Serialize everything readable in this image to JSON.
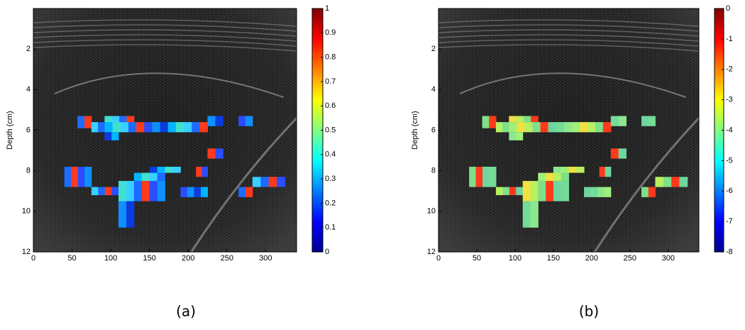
{
  "chart_data": [
    {
      "type": "heatmap",
      "caption": "(a)",
      "ylabel": "Depth (cm)",
      "xlim": [
        0,
        340
      ],
      "xticks": [
        0,
        50,
        100,
        150,
        200,
        250,
        300
      ],
      "ylim": [
        12,
        0
      ],
      "yticks": [
        2,
        4,
        6,
        8,
        10,
        12
      ],
      "colormap": "jet",
      "clim": [
        0,
        1
      ],
      "cticks": [
        0,
        0.1,
        0.2,
        0.3,
        0.4,
        0.5,
        0.6,
        0.7,
        0.8,
        0.9,
        1
      ]
    },
    {
      "type": "heatmap",
      "caption": "(b)",
      "ylabel": "Depth (cm)",
      "xlim": [
        0,
        340
      ],
      "xticks": [
        0,
        50,
        100,
        150,
        200,
        250,
        300
      ],
      "ylim": [
        12,
        0
      ],
      "yticks": [
        2,
        4,
        6,
        8,
        10,
        12
      ],
      "colormap": "jet",
      "clim": [
        -8,
        0
      ],
      "cticks": [
        -8,
        -7,
        -6,
        -5,
        -4,
        -3,
        -2,
        -1,
        0
      ]
    }
  ]
}
